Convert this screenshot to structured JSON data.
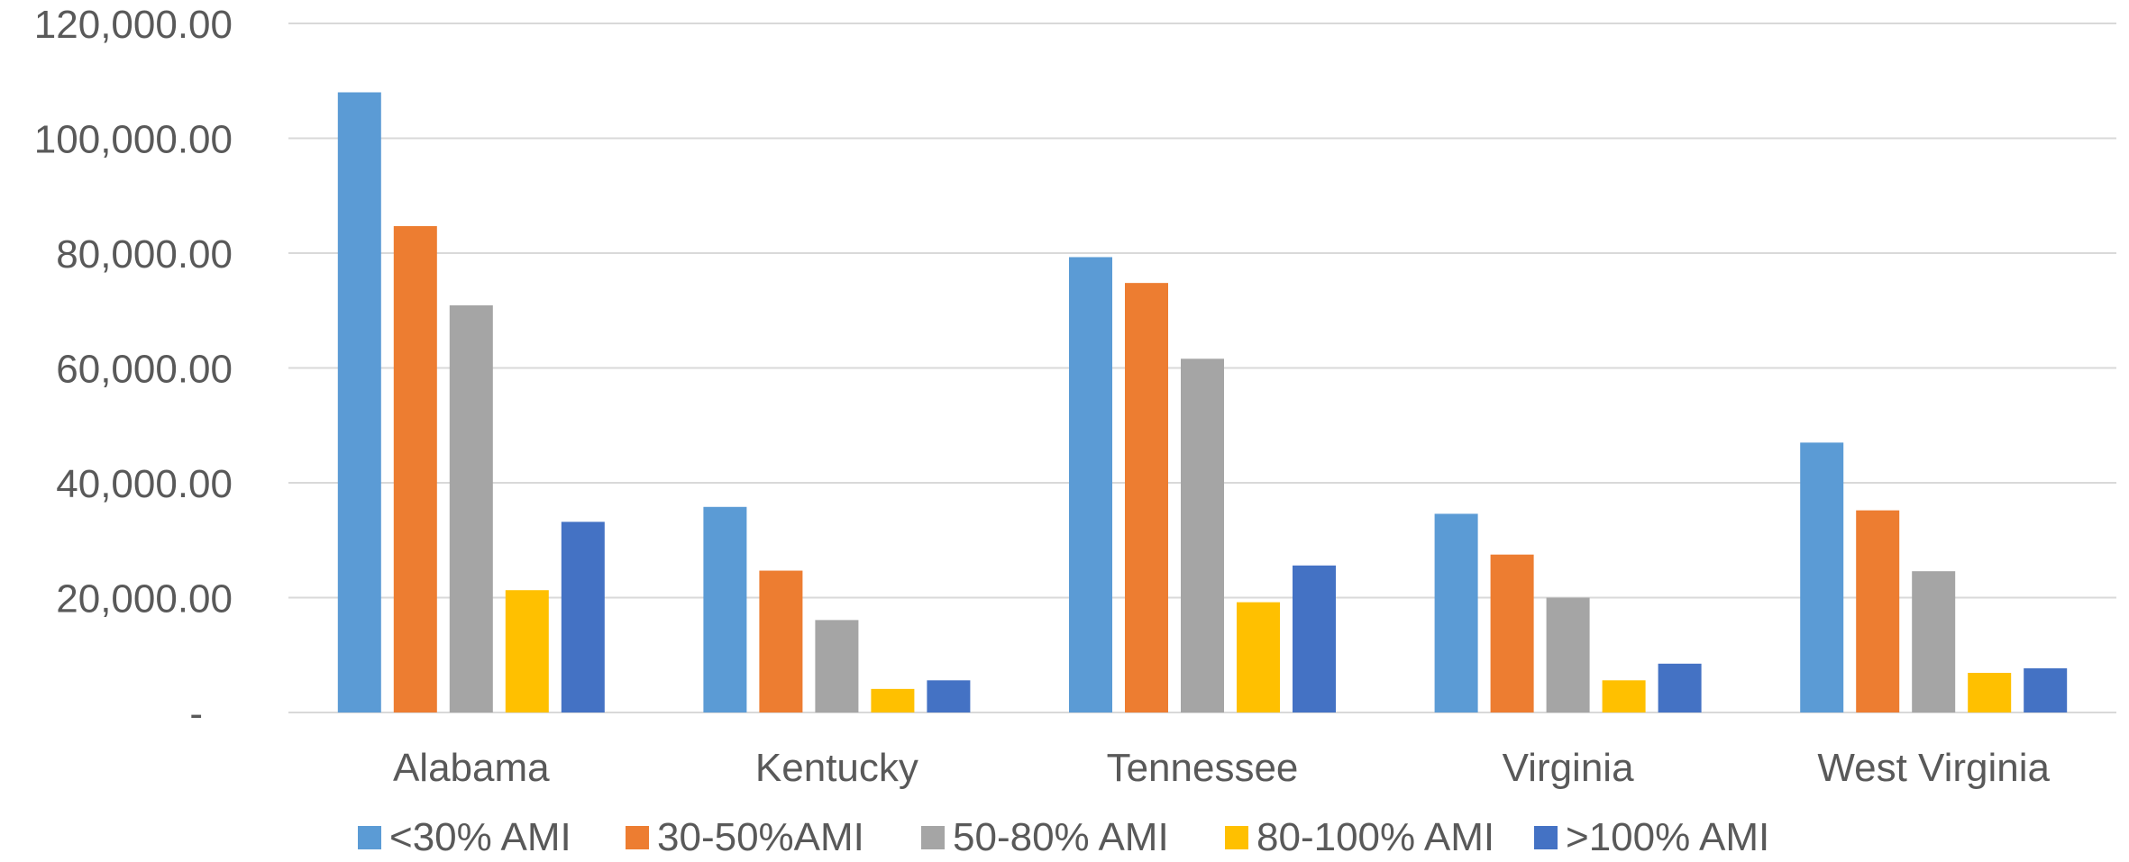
{
  "chart_data": {
    "type": "bar",
    "categories": [
      "Alabama",
      "Kentucky",
      "Tennessee",
      "Virginia",
      "West Virginia"
    ],
    "series": [
      {
        "name": "<30% AMI",
        "color": "#5B9BD5",
        "values": [
          108000,
          35800,
          79300,
          34600,
          47000
        ]
      },
      {
        "name": "30-50%AMI",
        "color": "#ED7D31",
        "values": [
          84700,
          24700,
          74800,
          27500,
          35200
        ]
      },
      {
        "name": "50-80% AMI",
        "color": "#A5A5A5",
        "values": [
          70900,
          16100,
          61600,
          20000,
          24600
        ]
      },
      {
        "name": "80-100% AMI",
        "color": "#FFC000",
        "values": [
          21300,
          4100,
          19200,
          5600,
          6900
        ]
      },
      {
        "name": ">100% AMI",
        "color": "#4472C4",
        "values": [
          33200,
          5600,
          25600,
          8500,
          7700
        ]
      }
    ],
    "ylim": [
      0,
      120000
    ],
    "y_ticks": [
      {
        "value": 0,
        "label": "-"
      },
      {
        "value": 20000,
        "label": "20,000.00"
      },
      {
        "value": 40000,
        "label": "40,000.00"
      },
      {
        "value": 60000,
        "label": "60,000.00"
      },
      {
        "value": 80000,
        "label": "80,000.00"
      },
      {
        "value": 100000,
        "label": "100,000.00"
      },
      {
        "value": 120000,
        "label": "120,000.00"
      }
    ],
    "title": "",
    "xlabel": "",
    "ylabel": "",
    "grid": true,
    "legend_position": "bottom",
    "gridline_color": "#D9D9D9"
  }
}
